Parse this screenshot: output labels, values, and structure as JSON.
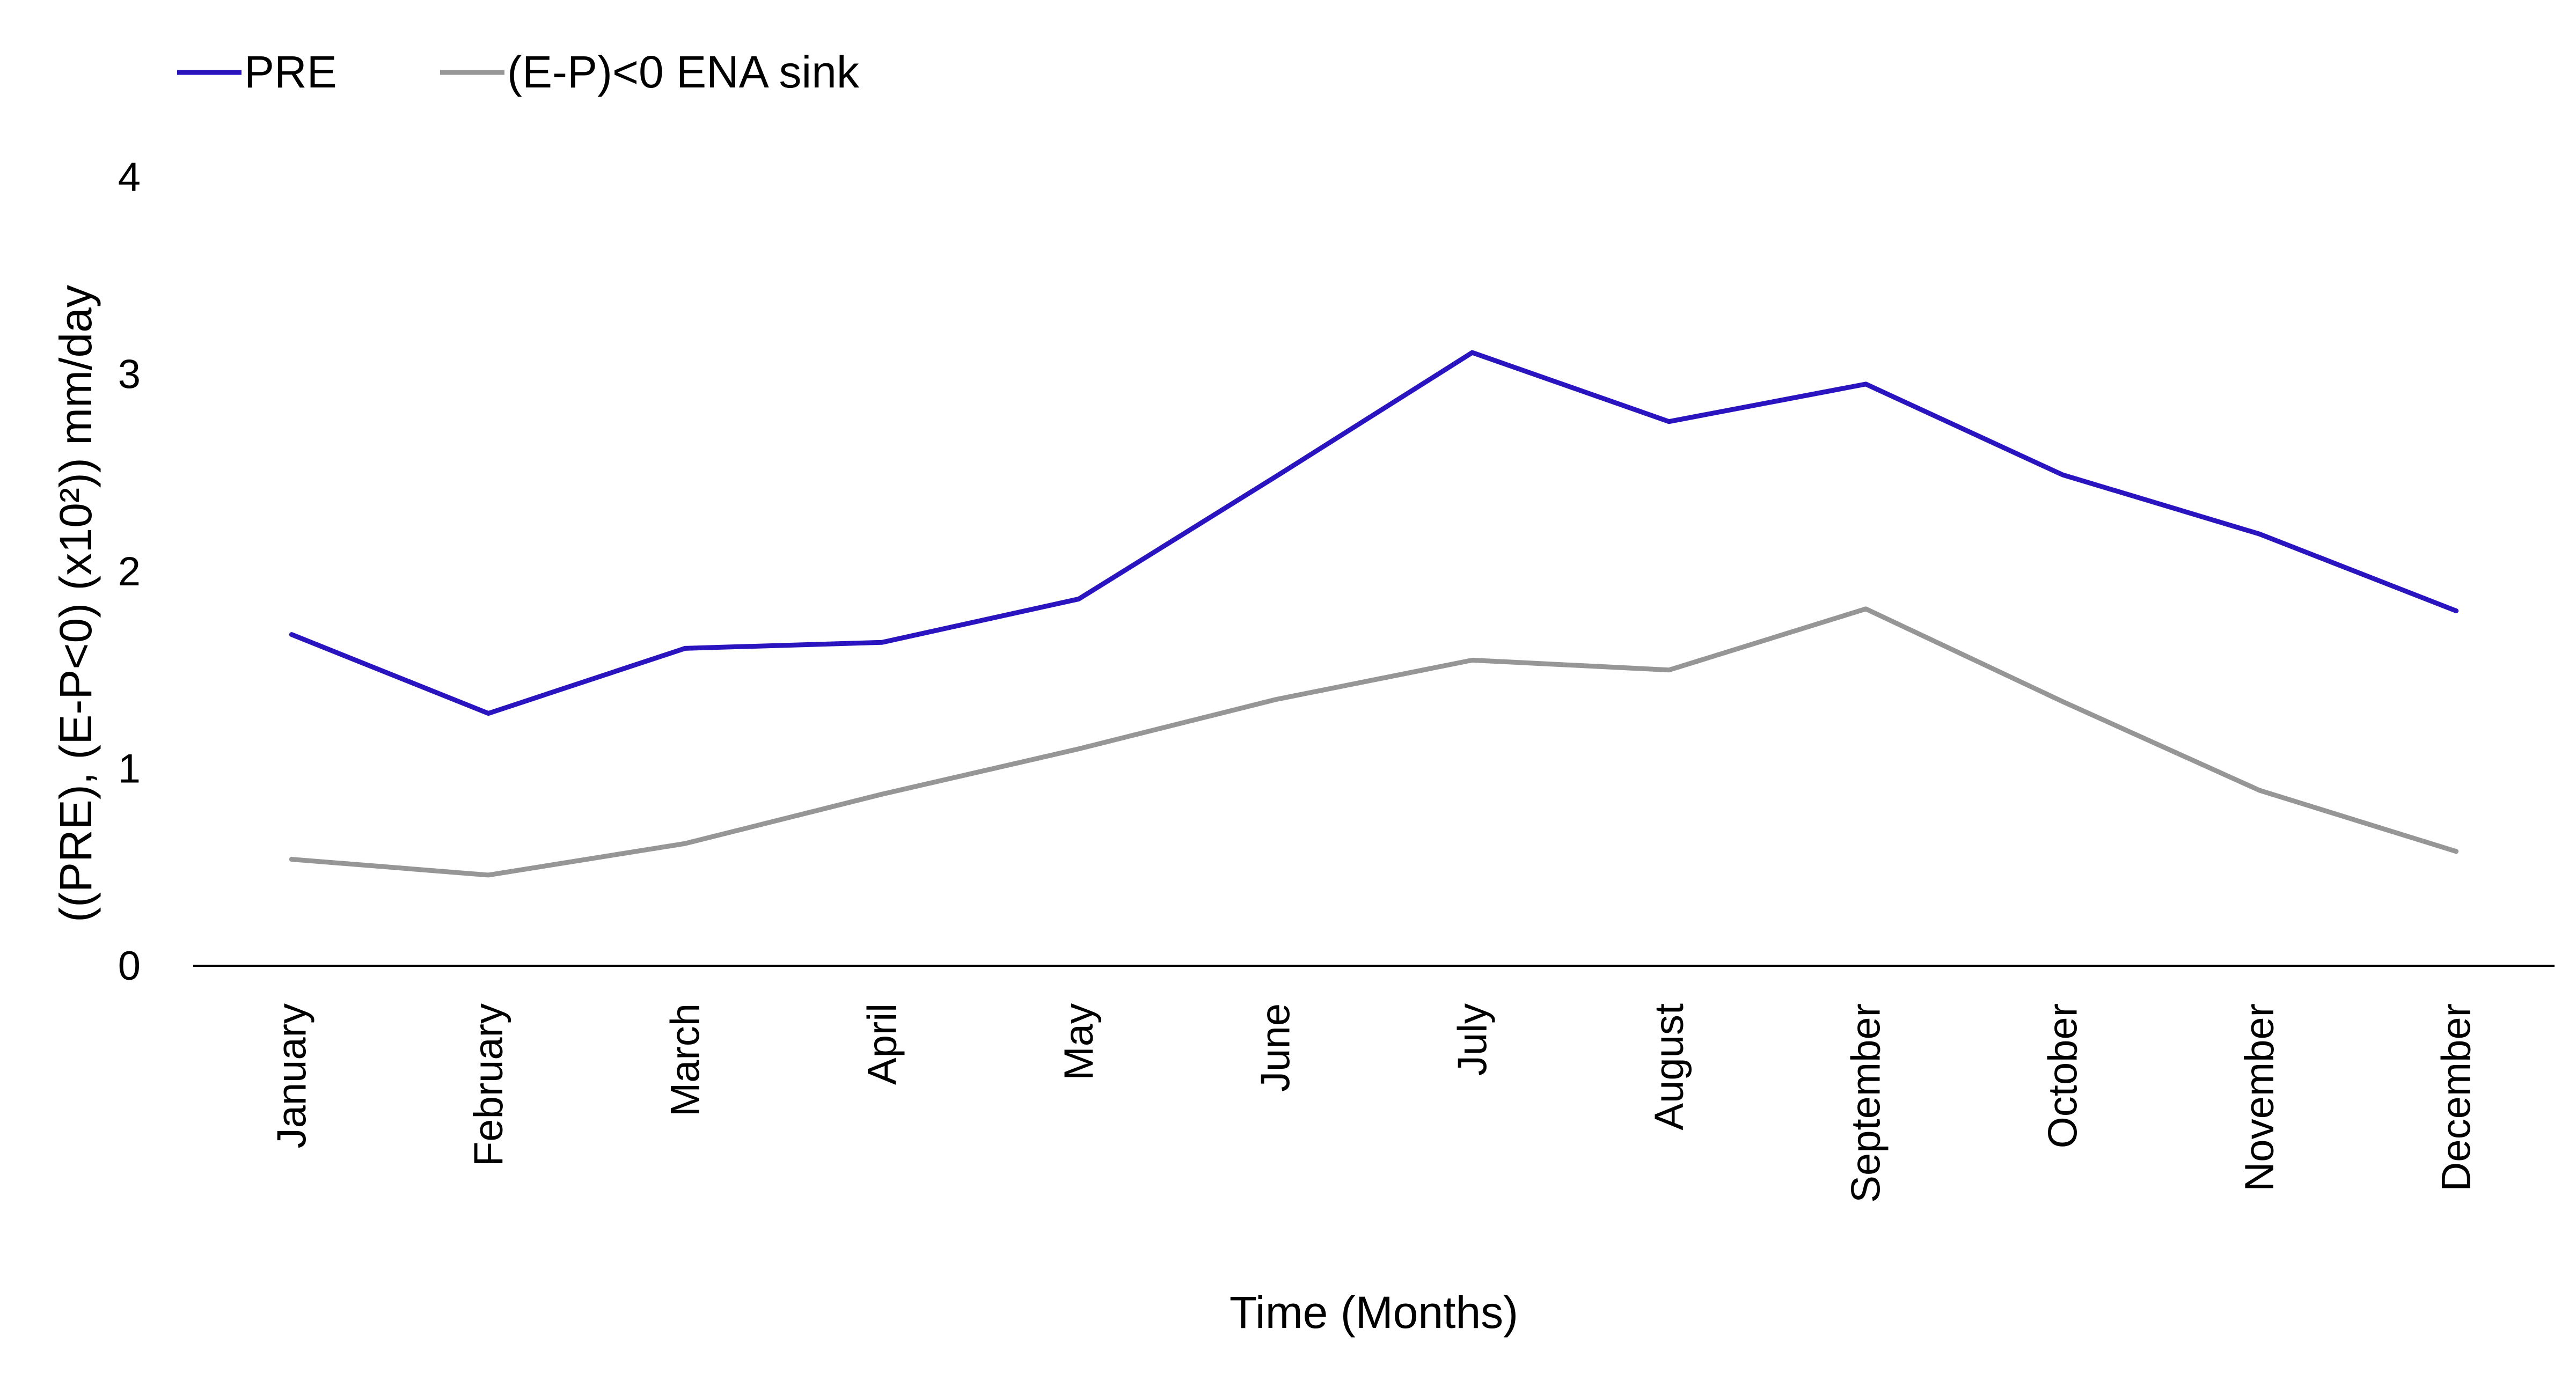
{
  "chart_data": {
    "type": "line",
    "categories": [
      "January",
      "February",
      "March",
      "April",
      "May",
      "June",
      "July",
      "August",
      "September",
      "October",
      "November",
      "December"
    ],
    "series": [
      {
        "name": "PRE",
        "color": "#2a14c0",
        "values": [
          1.68,
          1.28,
          1.61,
          1.64,
          1.86,
          2.48,
          3.11,
          2.76,
          2.95,
          2.49,
          2.19,
          1.8
        ]
      },
      {
        "name": "(E-P)<0  ENA sink",
        "color": "#969696",
        "values": [
          0.54,
          0.46,
          0.62,
          0.87,
          1.1,
          1.35,
          1.55,
          1.5,
          1.81,
          1.34,
          0.89,
          0.58
        ]
      }
    ],
    "xlabel": "Time (Months)",
    "ylabel": "((PRE), (E-P<0) (x10²)) mm/day",
    "ylim": [
      0,
      4
    ],
    "yticks": [
      "0",
      "1",
      "2",
      "3",
      "4"
    ],
    "grid": false,
    "legend_position": "top-left"
  }
}
